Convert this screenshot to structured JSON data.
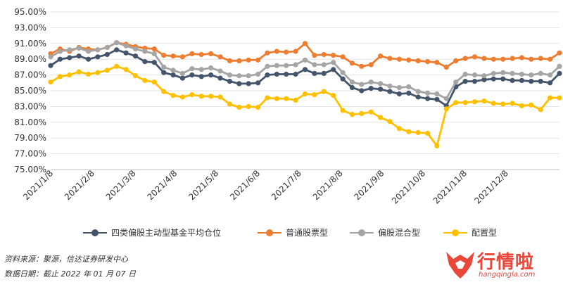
{
  "chart_data": {
    "type": "line",
    "ylim": [
      75,
      95
    ],
    "yticks": [
      "95.00%",
      "93.00%",
      "91.00%",
      "89.00%",
      "87.00%",
      "85.00%",
      "83.00%",
      "81.00%",
      "79.00%",
      "77.00%",
      "75.00%"
    ],
    "ytick_values": [
      95,
      93,
      91,
      89,
      87,
      85,
      83,
      81,
      79,
      77,
      75
    ],
    "xticks": [
      "2021/1/8",
      "2021/2/8",
      "2021/3/8",
      "2021/4/8",
      "2021/5/8",
      "2021/6/8",
      "2021/7/8",
      "2021/8/8",
      "2021/9/8",
      "2021/10/8",
      "2021/11/8",
      "2021/12/8"
    ],
    "grid": "horizontal",
    "legend_position": "bottom",
    "series": [
      {
        "name": "四类偏股主动型基金平均仓位",
        "color": "#44546a",
        "values": [
          88.2,
          89.0,
          89.2,
          89.4,
          89.0,
          89.3,
          89.6,
          90.2,
          89.8,
          89.4,
          88.7,
          88.6,
          87.3,
          87.0,
          86.6,
          87.0,
          86.8,
          87.0,
          86.6,
          86.2,
          85.9,
          85.9,
          86.0,
          87.0,
          87.1,
          87.1,
          87.1,
          87.7,
          87.2,
          87.2,
          87.7,
          86.5,
          85.4,
          85.0,
          85.3,
          85.2,
          84.9,
          84.6,
          84.7,
          84.2,
          84.0,
          83.9,
          83.1,
          85.5,
          86.2,
          86.2,
          86.4,
          86.5,
          86.5,
          86.3,
          86.3,
          86.2,
          86.2,
          86.0,
          87.2
        ]
      },
      {
        "name": "普通股票型",
        "color": "#ed7d31",
        "values": [
          89.7,
          90.3,
          90.0,
          90.5,
          90.3,
          90.2,
          90.5,
          91.1,
          90.9,
          90.6,
          90.4,
          90.3,
          89.5,
          89.4,
          89.3,
          89.7,
          89.6,
          89.7,
          89.3,
          88.8,
          88.8,
          88.9,
          88.9,
          89.8,
          90.0,
          89.9,
          90.0,
          91.0,
          89.5,
          89.6,
          89.5,
          89.3,
          88.5,
          88.1,
          88.3,
          89.4,
          89.1,
          89.0,
          88.9,
          88.8,
          88.7,
          88.6,
          88.0,
          88.8,
          89.1,
          89.3,
          89.1,
          89.0,
          89.0,
          89.1,
          89.2,
          89.0,
          89.1,
          89.0,
          89.8
        ]
      },
      {
        "name": "偏股混合型",
        "color": "#a5a5a5",
        "values": [
          89.3,
          90.0,
          90.2,
          90.4,
          90.0,
          90.2,
          90.5,
          91.1,
          90.7,
          90.3,
          90.0,
          89.7,
          88.0,
          87.6,
          87.2,
          87.8,
          87.7,
          87.9,
          87.5,
          87.0,
          86.9,
          86.9,
          87.1,
          88.1,
          88.2,
          88.2,
          88.3,
          88.9,
          88.3,
          88.3,
          88.6,
          87.3,
          86.1,
          85.8,
          86.1,
          85.9,
          85.6,
          85.4,
          85.5,
          84.9,
          84.7,
          84.6,
          84.0,
          86.1,
          87.1,
          87.0,
          86.9,
          87.2,
          87.3,
          87.2,
          87.1,
          87.0,
          87.2,
          87.0,
          88.1
        ]
      },
      {
        "name": "配置型",
        "color": "#ffc000",
        "values": [
          86.1,
          86.8,
          87.0,
          87.4,
          87.1,
          87.3,
          87.6,
          88.1,
          87.7,
          86.9,
          86.3,
          86.1,
          84.9,
          84.4,
          84.2,
          84.5,
          84.3,
          84.3,
          84.2,
          83.3,
          82.9,
          83.0,
          82.9,
          84.1,
          84.0,
          84.0,
          83.8,
          84.6,
          84.5,
          84.9,
          84.4,
          82.5,
          82.0,
          82.1,
          82.3,
          81.6,
          81.1,
          80.2,
          79.8,
          79.7,
          79.6,
          78.0,
          82.7,
          83.5,
          83.5,
          83.6,
          83.7,
          83.4,
          83.3,
          83.4,
          83.1,
          83.2,
          82.6,
          84.1,
          84.1
        ]
      }
    ]
  },
  "source": {
    "line1": "资料来源：聚源，信达证券研发中心",
    "line2": "数据日期：截止 2022 年 01 月 07 日"
  },
  "watermark": {
    "text": "行情啦",
    "url": "hangqingla.com",
    "color": "#e8473a",
    "icon": "flame-bull-icon"
  }
}
